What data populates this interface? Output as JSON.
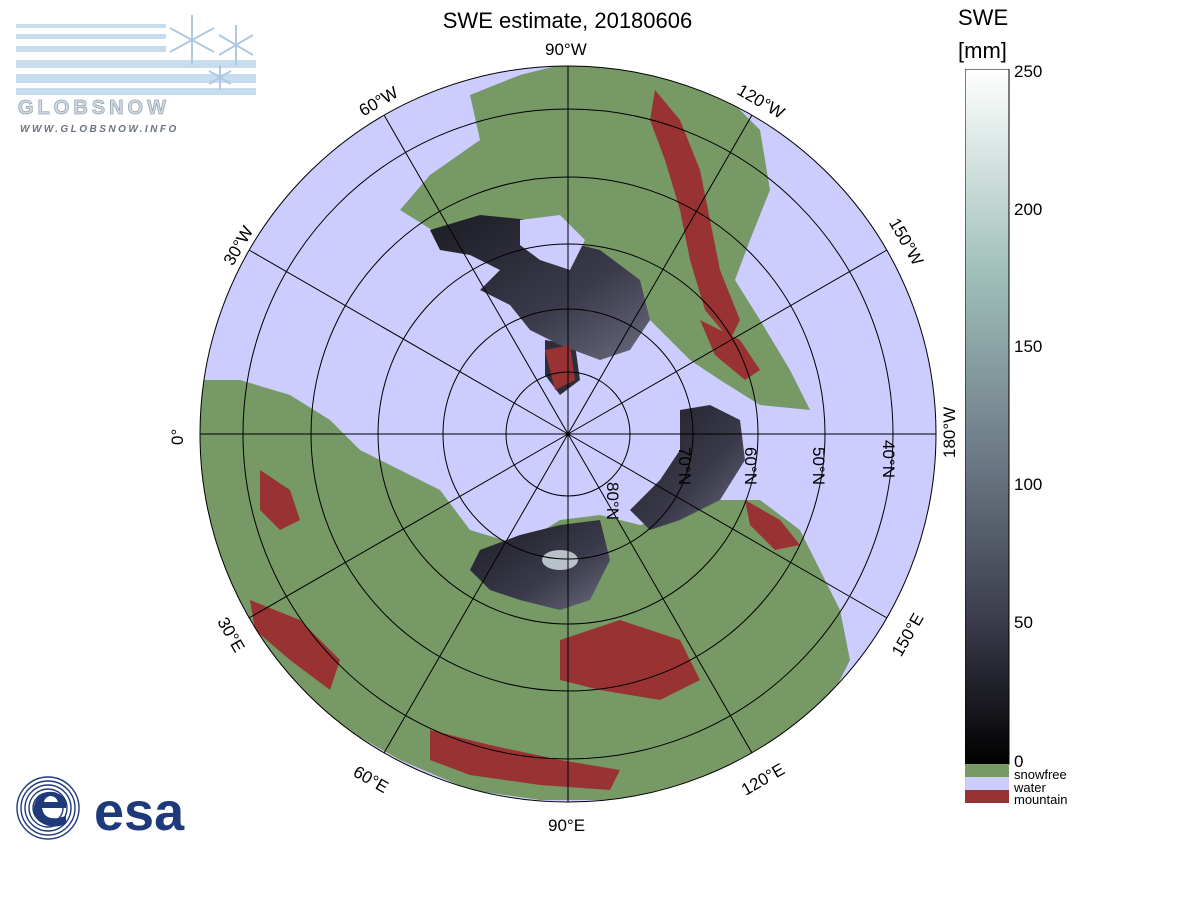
{
  "title": "SWE estimate, 20180606",
  "logos": {
    "globsnow_name": "GLOBSNOW",
    "globsnow_url": "WWW.GLOBSNOW.INFO",
    "esa_name": "esa"
  },
  "colorbar": {
    "title": "SWE",
    "unit": "[mm]",
    "range": [
      0,
      250
    ],
    "ticks": [
      "250",
      "200",
      "150",
      "100",
      "50",
      "0"
    ],
    "categories": [
      {
        "label": "snowfree",
        "color": "#779966"
      },
      {
        "label": "water",
        "color": "#ccccff"
      },
      {
        "label": "mountain",
        "color": "#993333"
      }
    ]
  },
  "map": {
    "projection": "north polar stereographic",
    "colors": {
      "water": "#ccccff",
      "land": "#779966",
      "mountain": "#993333",
      "snow_dark": "#2a2a36"
    },
    "longitude_labels": {
      "lon_90w": "90°W",
      "lon_120w": "120°W",
      "lon_150w": "150°W",
      "lon_180w": "180°W",
      "lon_60w": "60°W",
      "lon_30w": "30°W",
      "lon_0": "0°",
      "lon_30e": "30°E",
      "lon_60e": "60°E",
      "lon_90e": "90°E",
      "lon_120e": "120°E",
      "lon_150e": "150°E"
    },
    "latitude_labels": {
      "lat_80n": "80°N",
      "lat_70n": "70°N",
      "lat_60n": "60°N",
      "lat_50n": "50°N",
      "lat_40n": "40°N"
    }
  }
}
